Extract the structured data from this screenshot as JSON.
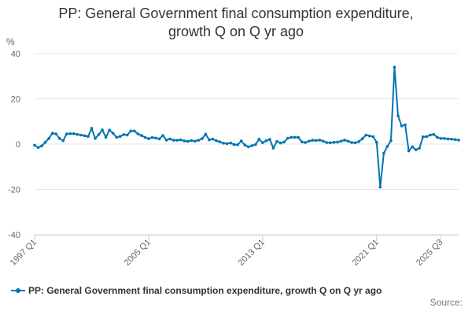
{
  "chart_data": {
    "type": "line",
    "title": "PP: General Government final consumption expenditure, growth Q on Q yr ago",
    "title_lines": [
      "PP: General Government final consumption expenditure,",
      "growth Q on Q yr ago"
    ],
    "ylabel": "%",
    "xlabel": "",
    "ylim": [
      -40,
      40
    ],
    "yticks": [
      40,
      20,
      0,
      -20,
      -40
    ],
    "xticks": [
      "1997 Q1",
      "2005 Q1",
      "2013 Q1",
      "2021 Q1",
      "2025 Q3"
    ],
    "grid": true,
    "legend_position": "bottom-left",
    "series": [
      {
        "name": "PP: General Government final consumption expenditure, growth Q on Q yr ago",
        "color": "#0075b0",
        "start_quarter": "1997 Q1",
        "values": [
          -0.5,
          -1.5,
          -0.8,
          0.8,
          2.5,
          4.8,
          4.5,
          2.5,
          1.5,
          4.5,
          4.6,
          4.6,
          4.3,
          4.0,
          3.7,
          3.4,
          7.0,
          2.5,
          4.2,
          6.3,
          3.0,
          6.2,
          4.8,
          3.0,
          3.4,
          4.2,
          4.0,
          5.8,
          5.8,
          4.5,
          3.8,
          3.0,
          2.4,
          2.9,
          2.7,
          2.3,
          3.8,
          1.8,
          2.3,
          1.7,
          1.7,
          1.9,
          1.4,
          1.2,
          1.6,
          1.3,
          1.7,
          2.4,
          4.4,
          1.9,
          2.2,
          1.5,
          1.0,
          0.4,
          0.2,
          0.5,
          -0.2,
          -0.3,
          1.4,
          -0.4,
          -1.2,
          -0.7,
          -0.2,
          2.2,
          0.6,
          1.5,
          2.1,
          -1.8,
          1.2,
          0.5,
          0.9,
          2.6,
          3.0,
          3.0,
          3.0,
          1.0,
          0.7,
          1.3,
          1.7,
          1.6,
          1.8,
          1.3,
          0.7,
          0.6,
          0.8,
          0.9,
          1.3,
          1.8,
          1.3,
          0.7,
          0.6,
          1.1,
          2.4,
          4.0,
          3.6,
          3.3,
          0.8,
          -19.0,
          -4.0,
          -1.0,
          1.5,
          34.0,
          12.5,
          8.0,
          8.5,
          -3.0,
          -1.2,
          -2.5,
          -1.8,
          3.2,
          3.3,
          4.0,
          4.3,
          3.0,
          2.5,
          2.5,
          2.3,
          2.2,
          2.0,
          1.8
        ]
      }
    ]
  },
  "legend": {
    "label": "PP: General Government final consumption expenditure, growth Q on Q yr ago"
  },
  "source": {
    "label": "Source:"
  }
}
